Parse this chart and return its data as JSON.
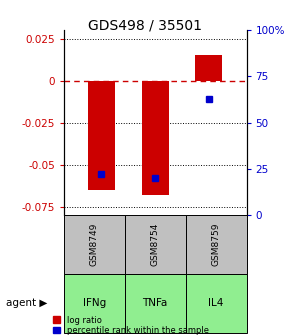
{
  "title": "GDS498 / 35501",
  "samples": [
    "GSM8749",
    "GSM8754",
    "GSM8759"
  ],
  "agents": [
    "IFNg",
    "TNFa",
    "IL4"
  ],
  "log_ratios": [
    -0.065,
    -0.068,
    0.015
  ],
  "percentile_ranks": [
    22,
    20,
    63
  ],
  "ylim_left": [
    -0.08,
    0.03
  ],
  "ylim_right": [
    0,
    100
  ],
  "yticks_left": [
    0.025,
    0,
    -0.025,
    -0.05,
    -0.075
  ],
  "yticks_right": [
    100,
    75,
    50,
    25,
    0
  ],
  "bar_color": "#cc0000",
  "percentile_color": "#0000cc",
  "zero_line_color": "#cc0000",
  "grid_color": "#000000",
  "sample_box_color": "#c0c0c0",
  "agent_box_color": "#90ee90",
  "title_fontsize": 10,
  "tick_fontsize": 7.5,
  "bar_width": 0.5
}
